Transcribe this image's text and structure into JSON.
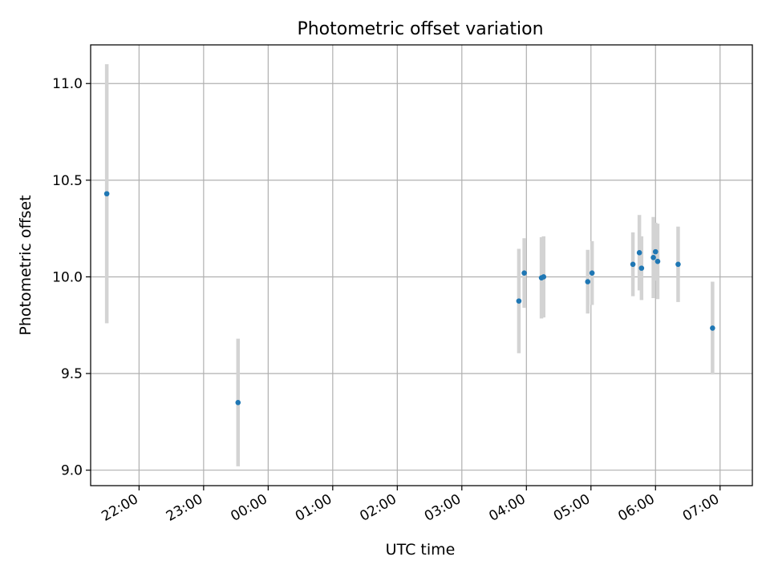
{
  "chart_data": {
    "type": "scatter",
    "title": "Photometric offset variation",
    "xlabel": "UTC time",
    "ylabel": "Photometric offset",
    "grid": true,
    "legend": "none",
    "xlim": [
      "21:15",
      "07:30"
    ],
    "ylim": [
      8.92,
      11.2
    ],
    "x_ticks": [
      "22:00",
      "23:00",
      "00:00",
      "01:00",
      "02:00",
      "03:00",
      "04:00",
      "05:00",
      "06:00",
      "07:00"
    ],
    "y_ticks": [
      "9.0",
      "9.5",
      "10.0",
      "10.5",
      "11.0"
    ],
    "colors": {
      "point": "#1f77b4",
      "errorbar": "#d3d3d3",
      "grid": "#b0b0b0"
    },
    "series": [
      {
        "points": [
          {
            "time": "21:30",
            "y": 10.43,
            "err": 0.67
          },
          {
            "time": "23:32",
            "y": 9.35,
            "err": 0.33
          },
          {
            "time": "03:53",
            "y": 9.875,
            "err": 0.27
          },
          {
            "time": "03:58",
            "y": 10.02,
            "err": 0.18
          },
          {
            "time": "04:14",
            "y": 9.995,
            "err": 0.21
          },
          {
            "time": "04:16",
            "y": 10.0,
            "err": 0.21
          },
          {
            "time": "04:57",
            "y": 9.975,
            "err": 0.165
          },
          {
            "time": "05:01",
            "y": 10.02,
            "err": 0.165
          },
          {
            "time": "05:39",
            "y": 10.065,
            "err": 0.165
          },
          {
            "time": "05:45",
            "y": 10.125,
            "err": 0.195
          },
          {
            "time": "05:47",
            "y": 10.045,
            "err": 0.165
          },
          {
            "time": "05:58",
            "y": 10.1,
            "err": 0.21
          },
          {
            "time": "06:00",
            "y": 10.13,
            "err": 0.15
          },
          {
            "time": "06:02",
            "y": 10.08,
            "err": 0.195
          },
          {
            "time": "06:21",
            "y": 10.065,
            "err": 0.195
          },
          {
            "time": "06:53",
            "y": 9.735,
            "err": 0.24
          }
        ]
      }
    ]
  }
}
